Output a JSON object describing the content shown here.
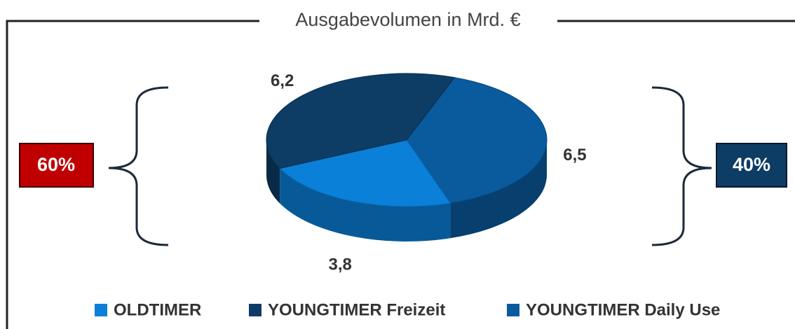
{
  "chart_data": {
    "type": "pie3d",
    "title": "Ausgabevolumen in Mrd. €",
    "categories": [
      "OLDTIMER",
      "YOUNGTIMER Freizeit",
      "YOUNGTIMER Daily Use"
    ],
    "values": [
      3.8,
      6.2,
      6.5
    ],
    "value_labels": [
      "3,8",
      "6,2",
      "6,5"
    ],
    "colors": [
      "#0a80d8",
      "#0d3c64",
      "#0a5a9e"
    ],
    "annotations": [
      "60%",
      "40%"
    ]
  }
}
